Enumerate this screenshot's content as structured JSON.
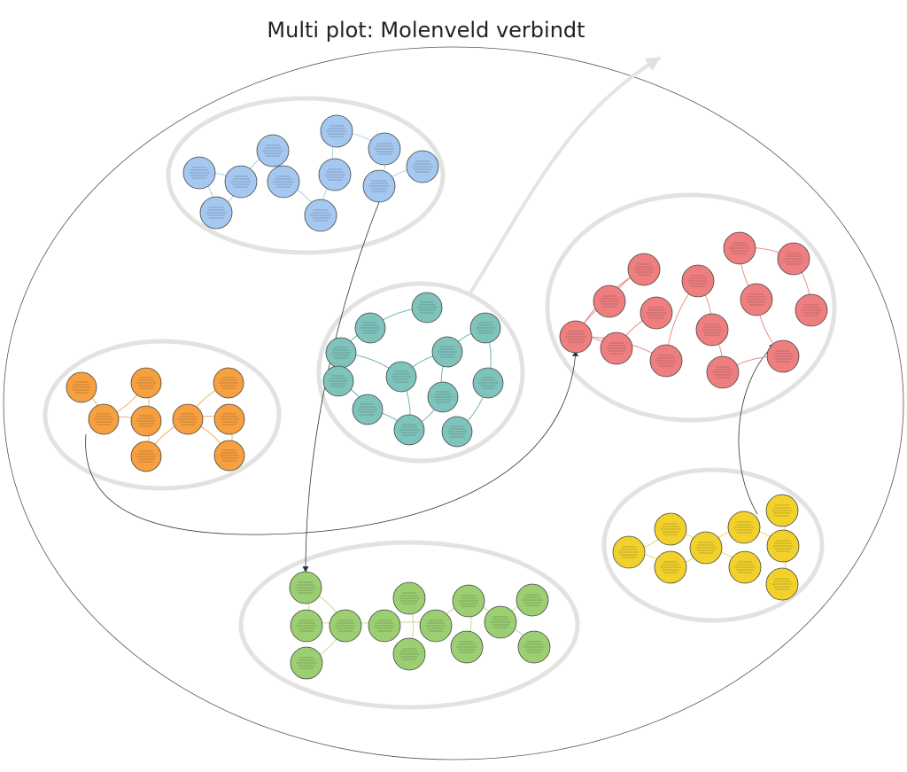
{
  "title": "Multi plot: Molenveld verbindt",
  "colors": {
    "blue": "#a4c8f0",
    "teal": "#7ec4bc",
    "orange": "#f7a040",
    "red": "#ef7f7f",
    "yellow": "#f2d22a",
    "green": "#9ccf72",
    "cluster_outline": "#e2e2e2",
    "big_arrow": "#e4e4e4"
  },
  "clusters": [
    {
      "name": "blue",
      "color": "#a4c8f0",
      "edge": "#a9d2e8"
    },
    {
      "name": "teal",
      "color": "#7ec4bc",
      "edge": "#6eb7b0"
    },
    {
      "name": "orange",
      "color": "#f7a040",
      "edge": "#f5b060"
    },
    {
      "name": "red",
      "color": "#ef7f7f",
      "edge": "#ea8d8d"
    },
    {
      "name": "yellow",
      "color": "#f2d22a",
      "edge": "#f0d850"
    },
    {
      "name": "green",
      "color": "#9ccf72",
      "edge": "#c4e08e"
    }
  ]
}
